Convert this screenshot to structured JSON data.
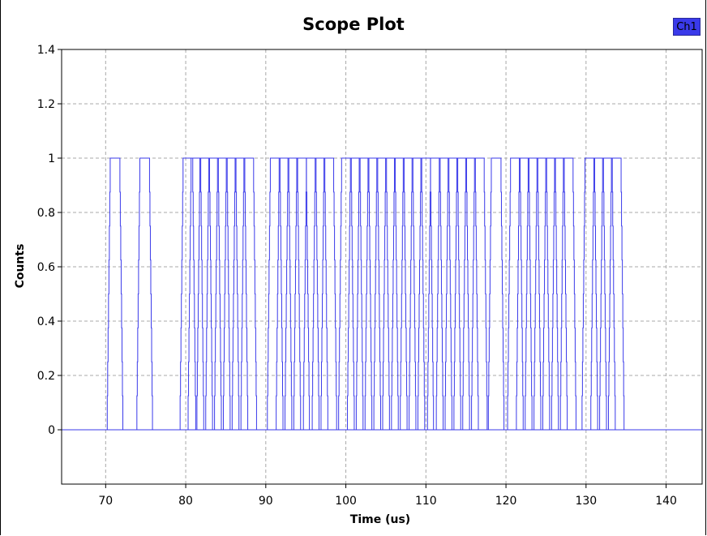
{
  "chart_data": {
    "type": "line",
    "title": "Scope Plot",
    "xlabel": "Time (us)",
    "ylabel": "Counts",
    "xlim": [
      64.5,
      144.5
    ],
    "ylim": [
      -0.2,
      1.4
    ],
    "x_ticks": [
      70,
      80,
      90,
      100,
      110,
      120,
      130,
      140
    ],
    "y_ticks": [
      0,
      0.2,
      0.4,
      0.6,
      0.8,
      1,
      1.2,
      1.4
    ],
    "y_tick_labels": [
      "0",
      "0.2",
      "0.4",
      "0.6",
      "0.8",
      "1",
      "1.2",
      "1.4"
    ],
    "grid": true,
    "legend": "top-right",
    "line_style": "step",
    "series": [
      {
        "name": "Ch1",
        "color": "#3a3aea",
        "pulses": [
          [
            70.2,
            72.2
          ],
          [
            73.9,
            75.9
          ],
          [
            79.3,
            81.3
          ],
          [
            80.3,
            82.3
          ],
          [
            81.4,
            83.4
          ],
          [
            82.5,
            84.5
          ],
          [
            83.6,
            85.6
          ],
          [
            84.7,
            86.7
          ],
          [
            85.8,
            87.8
          ],
          [
            86.9,
            88.9
          ],
          [
            90.2,
            92.2
          ],
          [
            91.3,
            93.3
          ],
          [
            92.4,
            94.4
          ],
          [
            93.5,
            95.5
          ],
          [
            94.7,
            96.7
          ],
          [
            95.8,
            97.8
          ],
          [
            96.9,
            98.9
          ],
          [
            99.1,
            101.1
          ],
          [
            100.2,
            102.2
          ],
          [
            101.3,
            103.3
          ],
          [
            102.4,
            104.4
          ],
          [
            103.5,
            105.5
          ],
          [
            104.6,
            106.6
          ],
          [
            105.7,
            107.7
          ],
          [
            106.8,
            108.8
          ],
          [
            107.9,
            109.9
          ],
          [
            109.0,
            111.0
          ],
          [
            110.2,
            112.2
          ],
          [
            111.3,
            113.3
          ],
          [
            112.4,
            114.4
          ],
          [
            113.5,
            115.5
          ],
          [
            114.6,
            116.6
          ],
          [
            115.7,
            117.7
          ],
          [
            117.8,
            119.8
          ],
          [
            120.2,
            122.2
          ],
          [
            121.3,
            123.3
          ],
          [
            122.4,
            124.4
          ],
          [
            123.5,
            125.5
          ],
          [
            124.6,
            126.6
          ],
          [
            125.7,
            127.7
          ],
          [
            126.8,
            128.8
          ],
          [
            129.5,
            131.5
          ],
          [
            130.6,
            132.6
          ],
          [
            131.7,
            133.7
          ],
          [
            132.8,
            134.8
          ]
        ]
      }
    ]
  }
}
